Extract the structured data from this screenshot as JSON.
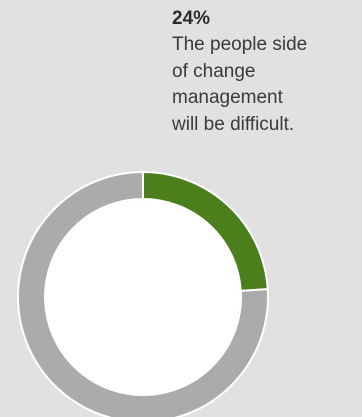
{
  "callout": {
    "percent_label": "24%",
    "description": "The people side\nof change\nmanagement\nwill be difficult."
  },
  "chart_data": {
    "type": "pie",
    "variant": "donut",
    "values": [
      24,
      76
    ],
    "colors": [
      "#4b7f1c",
      "#ababab"
    ],
    "ring_background": "#ffffff"
  }
}
